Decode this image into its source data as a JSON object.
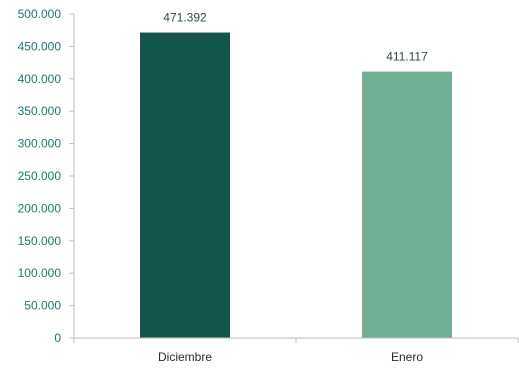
{
  "chart_data": {
    "type": "bar",
    "categories": [
      "Diciembre",
      "Enero"
    ],
    "values": [
      471392,
      411117
    ],
    "data_labels": [
      "471.392",
      "411.117"
    ],
    "title": "",
    "xlabel": "",
    "ylabel": "",
    "ylim": [
      0,
      500000
    ],
    "yticks": [
      0,
      50000,
      100000,
      150000,
      200000,
      250000,
      300000,
      350000,
      400000,
      450000,
      500000
    ],
    "ytick_labels": [
      "0",
      "50.000",
      "100.000",
      "150.000",
      "200.000",
      "250.000",
      "300.000",
      "350.000",
      "400.000",
      "450.000",
      "500.000"
    ],
    "grid": false,
    "bar_colors": [
      "#14564e",
      "#72b096"
    ]
  }
}
